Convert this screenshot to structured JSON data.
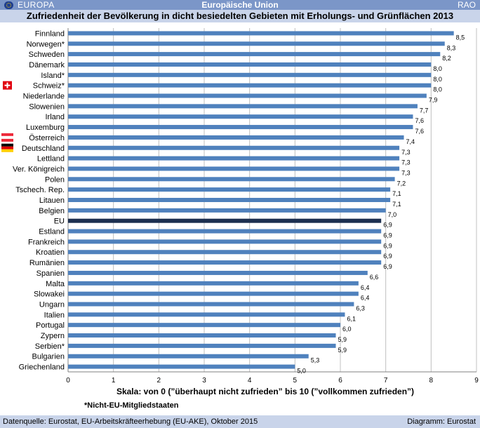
{
  "header": {
    "region": "EUROPA",
    "org": "Europäische Union",
    "code": "RAO",
    "title": "Zufriedenheit der Bevölkerung in dicht besiedelten Gebieten mit Erholungs- und Grünflächen 2013"
  },
  "colors": {
    "bar": "#4f81bd",
    "eu_bar": "#1c2f4f",
    "grid": "#c0c0c0"
  },
  "chart_data": {
    "type": "bar",
    "orientation": "horizontal",
    "categories": [
      "Finnland",
      "Norwegen*",
      "Schweden",
      "Dänemark",
      "Island*",
      "Schweiz*",
      "Niederlande",
      "Slowenien",
      "Irland",
      "Luxemburg",
      "Österreich",
      "Deutschland",
      "Lettland",
      "Ver. Königreich",
      "Polen",
      "Tschech. Rep.",
      "Litauen",
      "Belgien",
      "EU",
      "Estland",
      "Frankreich",
      "Kroatien",
      "Rumänien",
      "Spanien",
      "Malta",
      "Slowakei",
      "Ungarn",
      "Italien",
      "Portugal",
      "Zypern",
      "Serbien*",
      "Bulgarien",
      "Griechenland"
    ],
    "values": [
      8.5,
      8.3,
      8.2,
      8.0,
      8.0,
      8.0,
      7.9,
      7.7,
      7.6,
      7.6,
      7.4,
      7.3,
      7.3,
      7.3,
      7.2,
      7.1,
      7.1,
      7.0,
      6.9,
      6.9,
      6.9,
      6.9,
      6.9,
      6.6,
      6.4,
      6.4,
      6.3,
      6.1,
      6.0,
      5.9,
      5.9,
      5.3,
      5.0
    ],
    "value_labels": [
      "8,5",
      "8,3",
      "8,2",
      "8,0",
      "8,0",
      "8,0",
      "7,9",
      "7,7",
      "7,6",
      "7,6",
      "7,4",
      "7,3",
      "7,3",
      "7,3",
      "7,2",
      "7,1",
      "7,1",
      "7,0",
      "6,9",
      "6,9",
      "6,9",
      "6,9",
      "6,9",
      "6,6",
      "6,4",
      "6,4",
      "6,3",
      "6,1",
      "6,0",
      "5,9",
      "5,9",
      "5,3",
      "5,0"
    ],
    "highlight": "EU",
    "flags": {
      "Schweiz*": "switzerland",
      "Österreich": "austria",
      "Deutschland": "germany"
    },
    "xlim": [
      0,
      9
    ],
    "xticks": [
      0,
      1,
      2,
      3,
      4,
      5,
      6,
      7,
      8,
      9
    ],
    "xlabel": "Skala: von 0 (”überhaupt nicht zufrieden” bis 10 (”vollkommen zufrieden”)",
    "grid": "vertical"
  },
  "footnote": "*Nicht-EU-Mitgliedstaaten",
  "footer": {
    "source": "Datenquelle: Eurostat, EU-Arbeitskräfteerhebung (EU-AKE), Oktober 2015",
    "diagram": "Diagramm: Eurostat"
  }
}
